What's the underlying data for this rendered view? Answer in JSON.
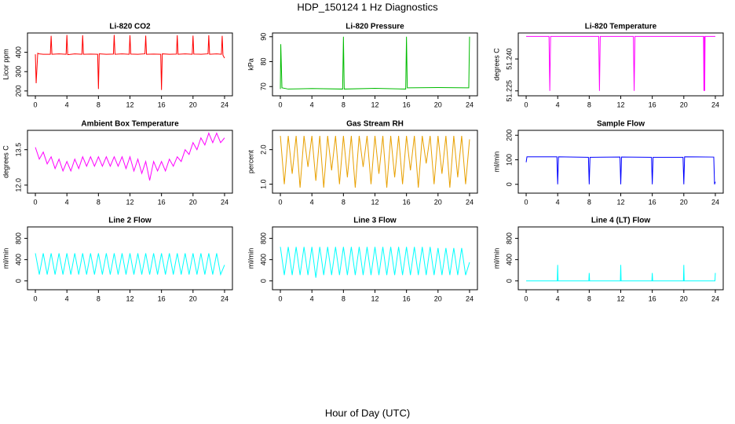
{
  "title": "HDP_150124 1 Hz Diagnostics",
  "xlabel": "Hour of Day (UTC)",
  "chart_data": [
    {
      "type": "line",
      "title": "Li-820 CO2",
      "ylabel": "Licor ppm",
      "color": "#ff0000",
      "x": [
        0,
        0.1,
        0.3,
        0.5,
        1,
        1.9,
        2,
        2.1,
        3,
        3.9,
        4,
        4.1,
        5,
        5.9,
        6,
        6.1,
        7,
        7.9,
        8,
        8.1,
        9,
        9.9,
        10,
        10.1,
        11,
        11.9,
        12,
        12.1,
        13,
        13.9,
        14,
        14.1,
        15,
        15.9,
        16,
        16.1,
        17,
        17.9,
        18,
        18.1,
        19,
        19.9,
        20,
        20.1,
        21,
        21.9,
        22,
        22.1,
        23,
        23.6,
        23.7,
        23.8,
        24
      ],
      "values": [
        390,
        240,
        395,
        392,
        390,
        390,
        485,
        390,
        392,
        390,
        490,
        388,
        392,
        390,
        488,
        390,
        391,
        390,
        210,
        392,
        390,
        391,
        490,
        390,
        392,
        390,
        488,
        391,
        390,
        392,
        486,
        390,
        391,
        390,
        205,
        392,
        390,
        391,
        488,
        390,
        392,
        390,
        486,
        391,
        390,
        392,
        488,
        390,
        392,
        390,
        485,
        385,
        370
      ],
      "xlim": [
        -1,
        25
      ],
      "xticks": [
        0,
        4,
        8,
        12,
        16,
        20,
        24
      ],
      "ylim": [
        175,
        500
      ],
      "yticks": [
        200,
        300,
        400
      ]
    },
    {
      "type": "line",
      "title": "Li-820 Pressure",
      "ylabel": "kPa",
      "color": "#00bb00",
      "x": [
        0,
        0.05,
        0.2,
        1,
        4,
        7.9,
        8,
        8.1,
        12,
        15.9,
        16,
        16.1,
        20,
        23.9,
        24
      ],
      "values": [
        69,
        87,
        69.5,
        69,
        69.2,
        69,
        90,
        69,
        69.3,
        69,
        90,
        69.5,
        69.6,
        69.5,
        90
      ],
      "xlim": [
        -1,
        25
      ],
      "xticks": [
        0,
        4,
        8,
        12,
        16,
        20,
        24
      ],
      "ylim": [
        66.3,
        91.5
      ],
      "yticks": [
        70,
        80,
        90
      ]
    },
    {
      "type": "line",
      "title": "Li-820 Temperature",
      "ylabel": "degrees C",
      "color": "#ff00ff",
      "x": [
        0,
        2.9,
        3,
        3.1,
        9.2,
        9.3,
        9.4,
        13.6,
        13.7,
        13.8,
        22.5,
        22.55,
        22.6,
        22.65,
        22.7,
        24
      ],
      "values": [
        51.2506,
        51.2506,
        51.225,
        51.2506,
        51.2506,
        51.225,
        51.2506,
        51.2506,
        51.225,
        51.2506,
        51.2506,
        51.225,
        51.2506,
        51.225,
        51.2506,
        51.2506
      ],
      "xlim": [
        -1,
        25
      ],
      "xticks": [
        0,
        4,
        8,
        12,
        16,
        20,
        24
      ],
      "ylim": [
        51.2227,
        51.2522
      ],
      "yticks": [
        51.225,
        {
          "value": 51.24,
          "label": "51.240"
        }
      ]
    },
    {
      "type": "line",
      "title": "Ambient Box Temperature",
      "ylabel": "degrees C",
      "color": "#ff00ff",
      "x": [
        0,
        0.5,
        1,
        1.5,
        2,
        2.5,
        3,
        3.5,
        4,
        4.5,
        5,
        5.5,
        6,
        6.5,
        7,
        7.5,
        8,
        8.5,
        9,
        9.5,
        10,
        10.5,
        11,
        11.5,
        12,
        12.5,
        13,
        13.5,
        14,
        14.5,
        15,
        15.5,
        16,
        16.5,
        17,
        17.5,
        18,
        18.5,
        19,
        19.5,
        20,
        20.5,
        21,
        21.5,
        22,
        22.5,
        23,
        23.5,
        24
      ],
      "values": [
        13.6,
        13.1,
        13.4,
        12.9,
        13.2,
        12.7,
        13.1,
        12.6,
        13.0,
        12.6,
        13.1,
        12.7,
        13.2,
        12.8,
        13.2,
        12.8,
        13.2,
        12.8,
        13.2,
        12.8,
        13.2,
        12.8,
        13.2,
        12.7,
        13.2,
        12.6,
        13.1,
        12.5,
        13.0,
        12.2,
        13.0,
        12.6,
        13.0,
        12.6,
        13.1,
        12.8,
        13.2,
        13.0,
        13.5,
        13.3,
        13.8,
        13.5,
        14.0,
        13.7,
        14.2,
        13.8,
        14.2,
        13.8,
        14.0
      ],
      "xlim": [
        -1,
        25
      ],
      "xticks": [
        0,
        4,
        8,
        12,
        16,
        20,
        24
      ],
      "ylim": [
        11.66,
        14.32
      ],
      "yticks": [
        {
          "value": 12,
          "label": "12.0"
        },
        {
          "value": 13.5,
          "label": "13.5"
        }
      ]
    },
    {
      "type": "line",
      "title": "Gas Stream RH",
      "ylabel": "percent",
      "color": "#e8a000",
      "x": [
        0,
        0.5,
        1,
        1.5,
        2,
        2.5,
        3,
        3.5,
        4,
        4.5,
        5,
        5.5,
        6,
        6.5,
        7,
        7.5,
        8,
        8.5,
        9,
        9.5,
        10,
        10.5,
        11,
        11.5,
        12,
        12.5,
        13,
        13.5,
        14,
        14.5,
        15,
        15.5,
        16,
        16.5,
        17,
        17.5,
        18,
        18.5,
        19,
        19.5,
        20,
        20.5,
        21,
        21.5,
        22,
        22.5,
        23,
        23.5,
        24
      ],
      "values": [
        2.4,
        1.0,
        2.4,
        1.3,
        2.4,
        0.9,
        2.4,
        1.5,
        2.4,
        1.1,
        2.4,
        0.9,
        2.4,
        1.4,
        2.4,
        1.0,
        2.4,
        1.2,
        2.4,
        0.9,
        2.4,
        1.5,
        2.4,
        1.0,
        2.4,
        1.3,
        2.4,
        0.9,
        2.4,
        1.2,
        2.4,
        1.0,
        2.4,
        1.4,
        2.4,
        0.9,
        2.4,
        1.6,
        2.4,
        1.0,
        2.4,
        1.3,
        2.4,
        0.9,
        2.4,
        1.2,
        2.4,
        1.0,
        2.3
      ],
      "xlim": [
        -1,
        25
      ],
      "xticks": [
        0,
        4,
        8,
        12,
        16,
        20,
        24
      ],
      "ylim": [
        0.74,
        2.56
      ],
      "yticks": [
        {
          "value": 1,
          "label": "1.0"
        },
        {
          "value": 2,
          "label": "2.0"
        }
      ]
    },
    {
      "type": "line",
      "title": "Sample Flow",
      "ylabel": "ml/min",
      "color": "#0000ff",
      "x": [
        0,
        0.1,
        3.9,
        4,
        4.1,
        7.9,
        8,
        8.1,
        11.9,
        12,
        12.1,
        15.9,
        16,
        16.1,
        19.9,
        20,
        20.1,
        23.8,
        23.9,
        24
      ],
      "values": [
        90,
        112,
        112,
        0,
        112,
        110,
        0,
        110,
        111,
        0,
        111,
        110,
        0,
        110,
        110,
        0,
        112,
        111,
        0,
        10
      ],
      "xlim": [
        -1,
        25
      ],
      "xticks": [
        0,
        4,
        8,
        12,
        16,
        20,
        24
      ],
      "ylim": [
        -36,
        220
      ],
      "yticks": [
        0,
        100,
        200
      ]
    },
    {
      "type": "line",
      "title": "Line 2 Flow",
      "ylabel": "ml/min",
      "color": "#00ffff",
      "x": [
        0,
        0.5,
        1,
        1.5,
        2,
        2.5,
        3,
        3.5,
        4,
        4.5,
        5,
        5.5,
        6,
        6.5,
        7,
        7.5,
        8,
        8.5,
        9,
        9.5,
        10,
        10.5,
        11,
        11.5,
        12,
        12.5,
        13,
        13.5,
        14,
        14.5,
        15,
        15.5,
        16,
        16.5,
        17,
        17.5,
        18,
        18.5,
        19,
        19.5,
        20,
        20.5,
        21,
        21.5,
        22,
        22.5,
        23,
        23.5,
        24
      ],
      "values": [
        520,
        120,
        520,
        120,
        520,
        120,
        520,
        120,
        520,
        120,
        520,
        120,
        520,
        120,
        520,
        120,
        520,
        120,
        520,
        120,
        520,
        120,
        520,
        120,
        520,
        120,
        520,
        120,
        520,
        120,
        520,
        120,
        520,
        120,
        520,
        120,
        520,
        120,
        520,
        120,
        520,
        120,
        520,
        120,
        520,
        120,
        520,
        120,
        300
      ],
      "xlim": [
        -1,
        25
      ],
      "xticks": [
        0,
        4,
        8,
        12,
        16,
        20,
        24
      ],
      "ylim": [
        -166,
        1015
      ],
      "yticks": [
        0,
        400,
        800
      ]
    },
    {
      "type": "line",
      "title": "Line 3 Flow",
      "ylabel": "ml/min",
      "color": "#00ffff",
      "x": [
        0,
        0.5,
        1,
        1.5,
        2,
        2.5,
        3,
        3.5,
        4,
        4.5,
        5,
        5.5,
        6,
        6.5,
        7,
        7.5,
        8,
        8.5,
        9,
        9.5,
        10,
        10.5,
        11,
        11.5,
        12,
        12.5,
        13,
        13.5,
        14,
        14.5,
        15,
        15.5,
        16,
        16.5,
        17,
        17.5,
        18,
        18.5,
        19,
        19.5,
        20,
        20.5,
        21,
        21.5,
        22,
        22.5,
        23,
        23.5,
        24
      ],
      "values": [
        640,
        110,
        640,
        110,
        640,
        110,
        640,
        110,
        640,
        60,
        640,
        110,
        640,
        110,
        640,
        110,
        640,
        110,
        640,
        110,
        640,
        110,
        640,
        110,
        640,
        110,
        640,
        110,
        640,
        110,
        640,
        110,
        640,
        110,
        640,
        110,
        640,
        110,
        640,
        110,
        620,
        110,
        620,
        110,
        620,
        110,
        620,
        110,
        350
      ],
      "xlim": [
        -1,
        25
      ],
      "xticks": [
        0,
        4,
        8,
        12,
        16,
        20,
        24
      ],
      "ylim": [
        -166,
        1015
      ],
      "yticks": [
        0,
        400,
        800
      ]
    },
    {
      "type": "line",
      "title": "Line 4 (LT) Flow",
      "ylabel": "ml/min",
      "color": "#00ffff",
      "x": [
        0,
        3.95,
        4,
        4.05,
        7.95,
        8,
        8.05,
        11.95,
        12,
        12.05,
        15.95,
        16,
        16.05,
        19.95,
        20,
        20.05,
        23.95,
        24
      ],
      "values": [
        0,
        0,
        300,
        0,
        0,
        150,
        0,
        0,
        300,
        0,
        0,
        150,
        0,
        0,
        300,
        0,
        0,
        150
      ],
      "xlim": [
        -1,
        25
      ],
      "xticks": [
        0,
        4,
        8,
        12,
        16,
        20,
        24
      ],
      "ylim": [
        -166,
        1015
      ],
      "yticks": [
        0,
        400,
        800
      ]
    }
  ]
}
